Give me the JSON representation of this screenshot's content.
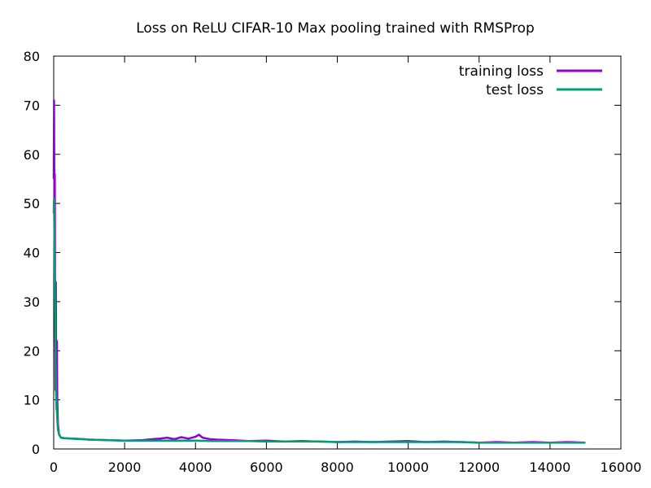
{
  "chart_data": {
    "type": "line",
    "title": "Loss on ReLU CIFAR-10 Max pooling trained with RMSProp",
    "xlabel": "",
    "ylabel": "",
    "xlim": [
      0,
      16000
    ],
    "ylim": [
      0,
      80
    ],
    "xticks": [
      0,
      2000,
      4000,
      6000,
      8000,
      10000,
      12000,
      14000,
      16000
    ],
    "yticks": [
      0,
      10,
      20,
      30,
      40,
      50,
      60,
      70,
      80
    ],
    "grid": false,
    "legend_position": "top-right",
    "series": [
      {
        "name": "training loss",
        "color": "#9400d3",
        "x": [
          0,
          10,
          20,
          30,
          40,
          50,
          60,
          70,
          80,
          90,
          100,
          120,
          150,
          200,
          300,
          500,
          800,
          1000,
          1500,
          2000,
          2500,
          2800,
          3000,
          3200,
          3400,
          3600,
          3800,
          4000,
          4100,
          4200,
          4400,
          4600,
          5000,
          5500,
          6000,
          6500,
          7000,
          7500,
          8000,
          8500,
          9000,
          9500,
          10000,
          10500,
          11000,
          11500,
          12000,
          12500,
          13000,
          13500,
          14000,
          14500,
          15000
        ],
        "y": [
          55,
          71,
          50,
          56,
          30,
          12,
          34,
          18,
          8,
          22,
          10,
          5,
          3,
          2.3,
          2.2,
          2.1,
          2.0,
          1.9,
          1.8,
          1.7,
          1.8,
          2.0,
          2.1,
          2.3,
          2.0,
          2.4,
          2.1,
          2.5,
          2.9,
          2.3,
          2.0,
          1.9,
          1.8,
          1.6,
          1.7,
          1.5,
          1.6,
          1.5,
          1.4,
          1.5,
          1.4,
          1.5,
          1.6,
          1.4,
          1.5,
          1.4,
          1.3,
          1.4,
          1.3,
          1.4,
          1.3,
          1.4,
          1.3
        ]
      },
      {
        "name": "test loss",
        "color": "#009e73",
        "x": [
          0,
          10,
          20,
          30,
          40,
          50,
          60,
          70,
          80,
          100,
          120,
          150,
          200,
          300,
          500,
          800,
          1000,
          1500,
          2000,
          2500,
          3000,
          3500,
          4000,
          4500,
          5000,
          5500,
          6000,
          6500,
          7000,
          7500,
          8000,
          8500,
          9000,
          9500,
          10000,
          10500,
          11000,
          11500,
          12000,
          12500,
          13000,
          13500,
          14000,
          14500,
          15000
        ],
        "y": [
          48,
          51,
          41,
          34,
          27,
          20,
          15,
          11,
          9,
          6,
          4,
          3,
          2.3,
          2.2,
          2.1,
          2.0,
          1.9,
          1.8,
          1.7,
          1.7,
          1.7,
          1.7,
          1.7,
          1.6,
          1.6,
          1.6,
          1.5,
          1.5,
          1.5,
          1.5,
          1.4,
          1.4,
          1.4,
          1.4,
          1.4,
          1.4,
          1.4,
          1.4,
          1.3,
          1.3,
          1.3,
          1.3,
          1.3,
          1.3,
          1.3
        ]
      }
    ]
  }
}
